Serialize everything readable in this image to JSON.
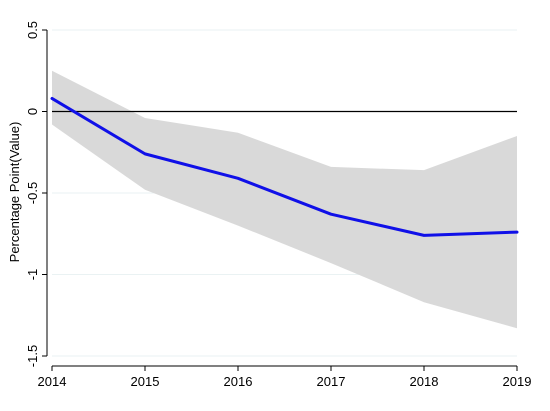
{
  "chart_data": {
    "type": "line",
    "title": "",
    "xlabel": "",
    "ylabel": "Percentage Point(Value)",
    "x": [
      2014,
      2015,
      2016,
      2017,
      2018,
      2019
    ],
    "xlim": [
      2014,
      2019
    ],
    "ylim": [
      -1.5,
      0.5
    ],
    "y_ticks": [
      -1.5,
      -1,
      -0.5,
      0,
      0.5
    ],
    "y_tick_labels": [
      "-1.5",
      "-1",
      "-0.5",
      "0",
      "0.5"
    ],
    "x_tick_labels": [
      "2014",
      "2015",
      "2016",
      "2017",
      "2018",
      "2019"
    ],
    "series": [
      {
        "values": [
          0.08,
          -0.26,
          -0.41,
          -0.63,
          -0.76,
          -0.74
        ],
        "color": "#1010e8"
      }
    ],
    "confidence_band": {
      "lower": [
        -0.08,
        -0.48,
        -0.7,
        -0.93,
        -1.17,
        -1.33
      ],
      "upper": [
        0.25,
        -0.04,
        -0.13,
        -0.34,
        -0.36,
        -0.15
      ],
      "color": "#d9d9d9"
    },
    "reference_line": {
      "y": 0,
      "color": "#000000"
    },
    "grid": true,
    "grid_color": "#eaf2f3",
    "legend": "none"
  }
}
